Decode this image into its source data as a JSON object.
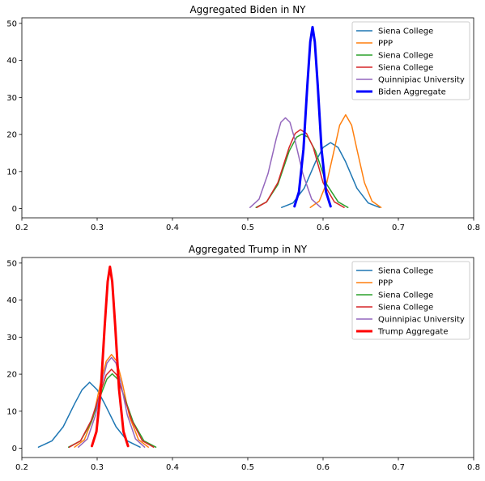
{
  "chart_data": [
    {
      "type": "line",
      "title": "Aggregated Biden in NY",
      "xlabel": "",
      "ylabel": "",
      "xlim": [
        0.2,
        0.8
      ],
      "ylim": [
        -2.5,
        51.5
      ],
      "xticks": [
        "0.2",
        "0.3",
        "0.4",
        "0.5",
        "0.6",
        "0.7",
        "0.8"
      ],
      "yticks": [
        "0",
        "10",
        "20",
        "30",
        "40",
        "50"
      ],
      "grid": false,
      "legend": "top-right",
      "series": [
        {
          "name": "Siena College",
          "color": "#1f77b4",
          "width": 1.5,
          "x": [
            0.545,
            0.56,
            0.575,
            0.59,
            0.6,
            0.61,
            0.62,
            0.63,
            0.645,
            0.66,
            0.675
          ],
          "y": [
            0.3,
            1.5,
            5.5,
            12.6,
            16.5,
            17.8,
            16.5,
            12.6,
            5.5,
            1.5,
            0.3
          ]
        },
        {
          "name": "PPP",
          "color": "#ff7f0e",
          "width": 1.5,
          "x": [
            0.583,
            0.595,
            0.605,
            0.615,
            0.622,
            0.63,
            0.638,
            0.645,
            0.655,
            0.665,
            0.677
          ],
          "y": [
            0.3,
            2.0,
            7.0,
            16.0,
            22.5,
            25.3,
            22.5,
            16.0,
            7.0,
            2.0,
            0.3
          ]
        },
        {
          "name": "Siena College",
          "color": "#2ca02c",
          "width": 1.5,
          "x": [
            0.511,
            0.525,
            0.54,
            0.555,
            0.565,
            0.572,
            0.58,
            0.59,
            0.605,
            0.62,
            0.633
          ],
          "y": [
            0.3,
            1.8,
            6.5,
            15.5,
            19.3,
            20.1,
            19.3,
            15.5,
            6.5,
            1.8,
            0.3
          ]
        },
        {
          "name": "Siena College",
          "color": "#d62728",
          "width": 1.5,
          "x": [
            0.512,
            0.525,
            0.54,
            0.555,
            0.563,
            0.57,
            0.578,
            0.587,
            0.6,
            0.615,
            0.628
          ],
          "y": [
            0.3,
            1.8,
            7.0,
            16.5,
            20.3,
            21.3,
            20.3,
            16.5,
            7.0,
            1.8,
            0.3
          ]
        },
        {
          "name": "Quinnipiac University",
          "color": "#9467bd",
          "width": 1.5,
          "x": [
            0.503,
            0.515,
            0.527,
            0.538,
            0.544,
            0.55,
            0.556,
            0.562,
            0.573,
            0.585,
            0.597
          ],
          "y": [
            0.3,
            2.5,
            9.5,
            19.0,
            23.3,
            24.5,
            23.3,
            19.0,
            9.5,
            2.5,
            0.3
          ]
        },
        {
          "name": "Biden Aggregate",
          "color": "#0000ff",
          "width": 3,
          "x": [
            0.562,
            0.568,
            0.574,
            0.579,
            0.583,
            0.586,
            0.589,
            0.593,
            0.598,
            0.604,
            0.61
          ],
          "y": [
            0.6,
            4.5,
            16.0,
            33.0,
            45.0,
            49.0,
            45.0,
            33.0,
            16.0,
            4.5,
            0.6
          ]
        }
      ]
    },
    {
      "type": "line",
      "title": "Aggregated Trump in NY",
      "xlabel": "",
      "ylabel": "",
      "xlim": [
        0.2,
        0.8
      ],
      "ylim": [
        -2.5,
        51.5
      ],
      "xticks": [
        "0.2",
        "0.3",
        "0.4",
        "0.5",
        "0.6",
        "0.7",
        "0.8"
      ],
      "yticks": [
        "0",
        "10",
        "20",
        "30",
        "40",
        "50"
      ],
      "grid": false,
      "legend": "top-right",
      "series": [
        {
          "name": "Siena College",
          "color": "#1f77b4",
          "width": 1.5,
          "x": [
            0.222,
            0.24,
            0.255,
            0.27,
            0.28,
            0.29,
            0.3,
            0.31,
            0.325,
            0.34,
            0.357
          ],
          "y": [
            0.3,
            2.0,
            5.8,
            12.0,
            15.8,
            17.8,
            15.8,
            12.0,
            5.8,
            2.0,
            0.3
          ]
        },
        {
          "name": "PPP",
          "color": "#ff7f0e",
          "width": 1.5,
          "x": [
            0.27,
            0.283,
            0.295,
            0.305,
            0.312,
            0.319,
            0.326,
            0.333,
            0.343,
            0.355,
            0.368
          ],
          "y": [
            0.3,
            2.3,
            8.5,
            18.0,
            23.5,
            25.3,
            23.5,
            18.0,
            8.5,
            2.3,
            0.3
          ]
        },
        {
          "name": "Siena College",
          "color": "#2ca02c",
          "width": 1.5,
          "x": [
            0.262,
            0.278,
            0.292,
            0.305,
            0.313,
            0.32,
            0.327,
            0.335,
            0.348,
            0.362,
            0.378
          ],
          "y": [
            0.3,
            2.0,
            7.0,
            14.5,
            18.7,
            20.1,
            18.7,
            14.5,
            7.0,
            2.0,
            0.3
          ]
        },
        {
          "name": "Siena College",
          "color": "#d62728",
          "width": 1.5,
          "x": [
            0.263,
            0.278,
            0.292,
            0.305,
            0.312,
            0.319,
            0.326,
            0.333,
            0.346,
            0.36,
            0.375
          ],
          "y": [
            0.3,
            2.0,
            7.5,
            15.5,
            19.8,
            21.3,
            19.8,
            15.5,
            7.5,
            2.0,
            0.3
          ]
        },
        {
          "name": "Quinnipiac University",
          "color": "#9467bd",
          "width": 1.5,
          "x": [
            0.275,
            0.287,
            0.298,
            0.307,
            0.313,
            0.319,
            0.325,
            0.331,
            0.34,
            0.351,
            0.363
          ],
          "y": [
            0.3,
            2.5,
            9.0,
            18.0,
            23.0,
            24.5,
            23.0,
            18.0,
            9.0,
            2.5,
            0.3
          ]
        },
        {
          "name": "Trump Aggregate",
          "color": "#ff0000",
          "width": 3,
          "x": [
            0.293,
            0.299,
            0.305,
            0.31,
            0.314,
            0.317,
            0.32,
            0.324,
            0.329,
            0.335,
            0.341
          ],
          "y": [
            0.6,
            4.5,
            16.0,
            33.0,
            45.0,
            49.0,
            45.0,
            33.0,
            16.0,
            4.5,
            0.6
          ]
        }
      ]
    }
  ]
}
